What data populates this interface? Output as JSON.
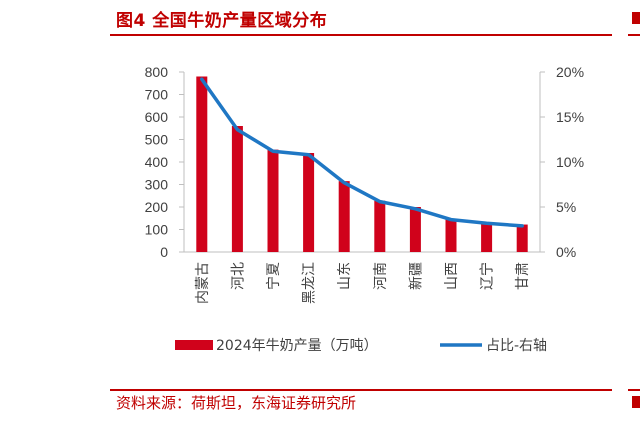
{
  "header": {
    "title": "图4  全国牛奶产量区域分布"
  },
  "footer": {
    "source": "资料来源：荷斯坦，东海证券研究所"
  },
  "colors": {
    "accent": "#c00000",
    "bar": "#d0021b",
    "line": "#1f77c4"
  },
  "chart_data": {
    "type": "bar",
    "categories": [
      "内蒙古",
      "河北",
      "宁夏",
      "黑龙江",
      "山东",
      "河南",
      "新疆",
      "山西",
      "辽宁",
      "甘肃"
    ],
    "series": [
      {
        "name": "2024年牛奶产量（万吨）",
        "type": "bar",
        "axis": "left",
        "values": [
          780,
          560,
          455,
          440,
          315,
          228,
          200,
          145,
          130,
          122
        ]
      },
      {
        "name": "占比-右轴",
        "type": "line",
        "axis": "right",
        "values": [
          19.2,
          13.6,
          11.2,
          10.8,
          7.7,
          5.6,
          4.8,
          3.6,
          3.2,
          2.9
        ]
      }
    ],
    "y_left": {
      "min": 0,
      "max": 800,
      "ticks": [
        "0",
        "100",
        "200",
        "300",
        "400",
        "500",
        "600",
        "700",
        "800"
      ]
    },
    "y_right": {
      "min": 0,
      "max": 20,
      "ticks": [
        "0%",
        "5%",
        "10%",
        "15%",
        "20%"
      ]
    },
    "grid": false,
    "legend": "bottom"
  }
}
